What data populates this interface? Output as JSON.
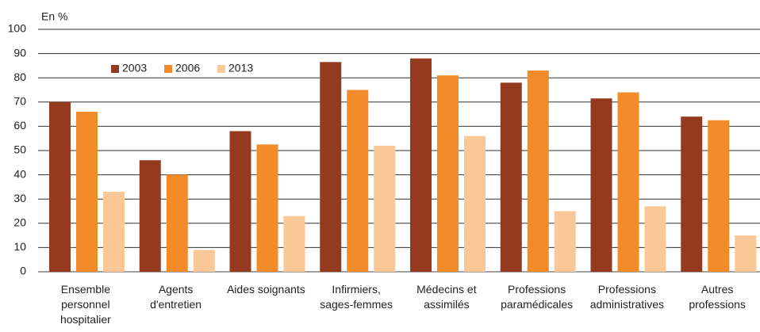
{
  "chart_data": {
    "type": "bar",
    "y_unit_label": "En %",
    "categories": [
      "Ensemble\npersonnel\nhospitalier",
      "Agents\nd'entretien",
      "Aides soignants",
      "Infirmiers,\nsages-femmes",
      "Médecins et\nassimilés",
      "Professions\nparamédicales",
      "Professions\nadministratives",
      "Autres\nprofessions"
    ],
    "series": [
      {
        "name": "2003",
        "color": "#943a1f",
        "values": [
          70,
          46,
          58,
          86.5,
          88,
          78,
          71.5,
          64
        ]
      },
      {
        "name": "2006",
        "color": "#f28c28",
        "values": [
          66,
          40,
          52.5,
          75,
          81,
          83,
          74,
          62.5
        ]
      },
      {
        "name": "2013",
        "color": "#f9c896",
        "values": [
          33,
          9,
          23,
          52,
          56,
          25,
          27,
          15
        ]
      }
    ],
    "ylim": [
      0,
      100
    ],
    "yticks": [
      0,
      10,
      20,
      30,
      40,
      50,
      60,
      70,
      80,
      90,
      100
    ],
    "grid": true,
    "legend": "top-left"
  }
}
